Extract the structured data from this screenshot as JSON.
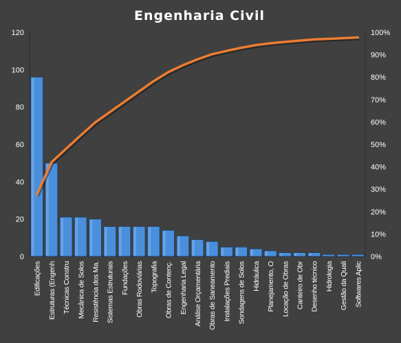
{
  "chart_data": {
    "type": "bar",
    "title": "Engenharia  Civil",
    "categories": [
      "Edificações",
      "Estruturas (Engenh",
      "Técnicas Constru",
      "Mecânica de Solos",
      "Resistência dos Ma.",
      "Sistemas Estruturais",
      "Fundações",
      "Obras Rodoviárias",
      "Topografia",
      "Obras de Contenç.",
      "Engenharia Legal",
      "Análise Orçamentária",
      "Obras de Saneamento",
      "Instalações Prediais",
      "Sondagens de Solos",
      "Hidráulica",
      "Planejamento, O",
      "Locação de Obras",
      "Canteiro de Obr",
      "Desenho técnico",
      "Hidrologia",
      "Gestão da Quali",
      "Softwares Aplic"
    ],
    "series": [
      {
        "type": "bar",
        "values": [
          96,
          50,
          21,
          21,
          20,
          16,
          16,
          16,
          16,
          14,
          11,
          9,
          8,
          5,
          5,
          4,
          3,
          2,
          2,
          2,
          1,
          1,
          1
        ],
        "color": "#4a8fdb"
      },
      {
        "type": "line",
        "axis": "right",
        "values": [
          27.6,
          42.0,
          48.0,
          54.0,
          59.8,
          64.4,
          69.0,
          73.6,
          78.2,
          82.2,
          85.3,
          87.9,
          90.2,
          91.7,
          93.1,
          94.3,
          95.1,
          95.7,
          96.3,
          96.8,
          97.1,
          97.4,
          97.7
        ],
        "color": "#ed7d31"
      }
    ],
    "ylim": [
      0,
      120
    ],
    "yticks": [
      "0",
      "20",
      "40",
      "60",
      "80",
      "100",
      "120"
    ],
    "y2lim": [
      0,
      100
    ],
    "y2ticks": [
      "0%",
      "10%",
      "20%",
      "30%",
      "40%",
      "50%",
      "60%",
      "70%",
      "80%",
      "90%",
      "100%"
    ],
    "grid": false,
    "legend": "none"
  }
}
